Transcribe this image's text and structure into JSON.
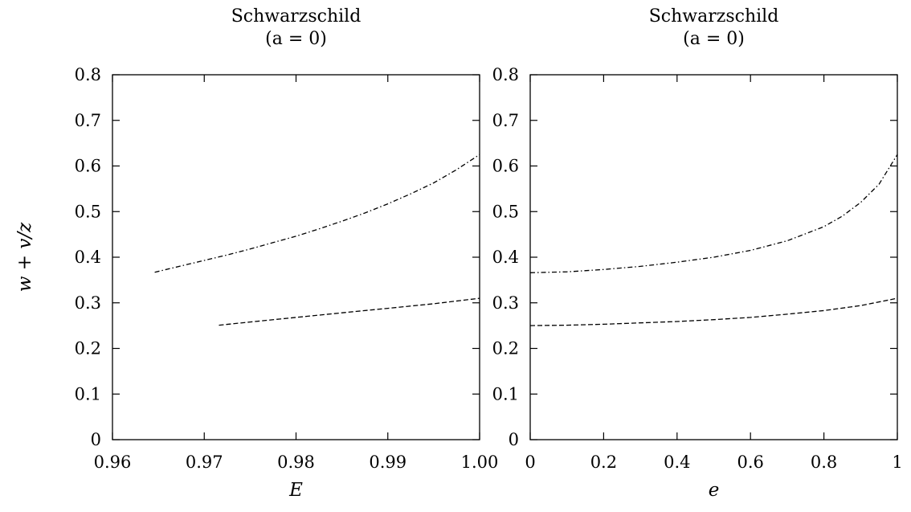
{
  "chart_data": [
    {
      "type": "line",
      "title": "Schwarzschild",
      "subtitle": "(a = 0)",
      "xlabel": "E",
      "ylabel": "w + v/z",
      "xlim": [
        0.96,
        1.0
      ],
      "ylim": [
        0,
        0.8
      ],
      "xticks": [
        "0.96",
        "0.97",
        "0.98",
        "0.99",
        "1.00"
      ],
      "yticks": [
        "0",
        "0.1",
        "0.2",
        "0.3",
        "0.4",
        "0.5",
        "0.6",
        "0.7",
        "0.8"
      ],
      "grid": false,
      "series": [
        {
          "style": "dash-dot",
          "x": [
            0.9646,
            0.9675,
            0.97,
            0.9725,
            0.975,
            0.9775,
            0.98,
            0.9825,
            0.985,
            0.9875,
            0.99,
            0.9925,
            0.995,
            0.9975,
            1.0
          ],
          "y": [
            0.367,
            0.381,
            0.393,
            0.405,
            0.418,
            0.432,
            0.446,
            0.462,
            0.479,
            0.497,
            0.517,
            0.539,
            0.563,
            0.592,
            0.625
          ]
        },
        {
          "style": "dashed",
          "x": [
            0.9716,
            0.975,
            0.98,
            0.985,
            0.99,
            0.995,
            1.0
          ],
          "y": [
            0.251,
            0.258,
            0.268,
            0.278,
            0.288,
            0.298,
            0.31
          ]
        }
      ]
    },
    {
      "type": "line",
      "title": "Schwarzschild",
      "subtitle": "(a = 0)",
      "xlabel": "e",
      "ylabel": "",
      "xlim": [
        0,
        1
      ],
      "ylim": [
        0,
        0.8
      ],
      "xticks": [
        "0",
        "0.2",
        "0.4",
        "0.6",
        "0.8",
        "1"
      ],
      "yticks": [
        "0",
        "0.1",
        "0.2",
        "0.3",
        "0.4",
        "0.5",
        "0.6",
        "0.7",
        "0.8"
      ],
      "grid": false,
      "series": [
        {
          "style": "dash-dot",
          "x": [
            0,
            0.1,
            0.2,
            0.3,
            0.4,
            0.5,
            0.6,
            0.7,
            0.8,
            0.85,
            0.9,
            0.95,
            1.0
          ],
          "y": [
            0.366,
            0.368,
            0.373,
            0.38,
            0.389,
            0.4,
            0.415,
            0.436,
            0.467,
            0.49,
            0.52,
            0.56,
            0.625
          ]
        },
        {
          "style": "dashed",
          "x": [
            0,
            0.1,
            0.2,
            0.3,
            0.4,
            0.5,
            0.6,
            0.7,
            0.8,
            0.9,
            1.0
          ],
          "y": [
            0.25,
            0.251,
            0.253,
            0.256,
            0.259,
            0.263,
            0.268,
            0.275,
            0.283,
            0.294,
            0.31
          ]
        }
      ]
    }
  ]
}
